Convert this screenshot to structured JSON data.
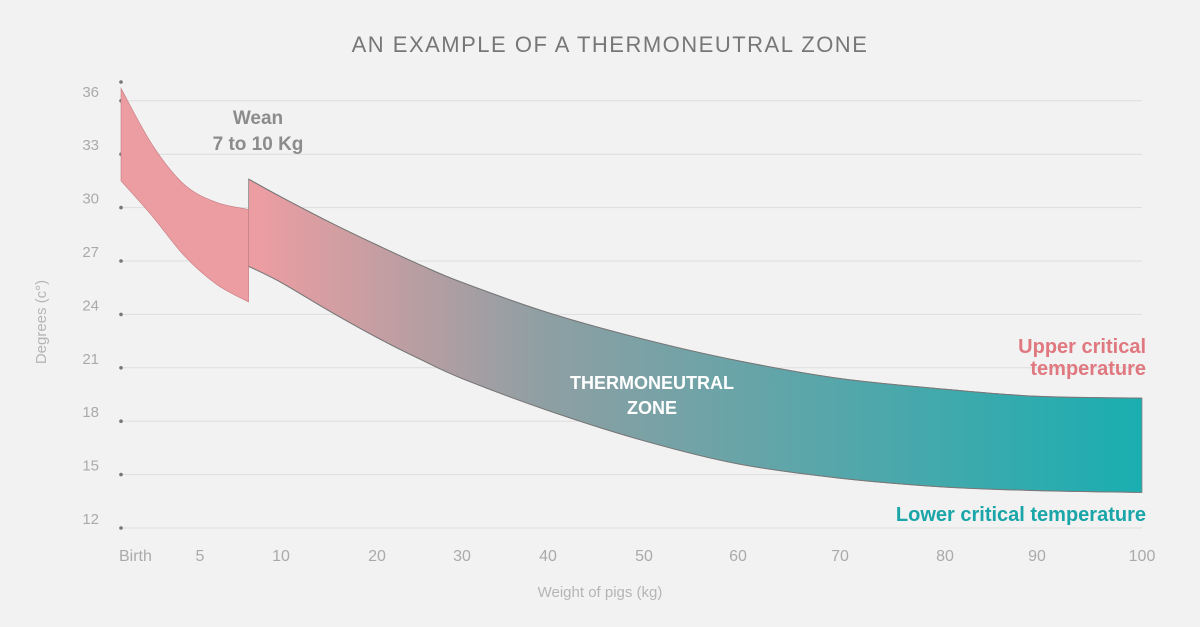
{
  "chart_data": {
    "type": "area",
    "title": "AN EXAMPLE OF A THERMONEUTRAL ZONE",
    "xlabel": "Weight of pigs (kg)",
    "ylabel": "Degrees (c°)",
    "x_ticks": [
      {
        "label": "Birth",
        "value": 0
      },
      {
        "label": "5",
        "value": 5
      },
      {
        "label": "10",
        "value": 10
      },
      {
        "label": "20",
        "value": 20
      },
      {
        "label": "30",
        "value": 30
      },
      {
        "label": "40",
        "value": 40
      },
      {
        "label": "50",
        "value": 50
      },
      {
        "label": "60",
        "value": 60
      },
      {
        "label": "70",
        "value": 70
      },
      {
        "label": "80",
        "value": 80
      },
      {
        "label": "90",
        "value": 90
      },
      {
        "label": "100",
        "value": 100
      }
    ],
    "y_ticks": [
      12,
      15,
      18,
      21,
      24,
      27,
      30,
      33,
      36
    ],
    "ylim": [
      12,
      37
    ],
    "grid": true,
    "series": [
      {
        "name": "Upper critical temperature",
        "color": "#e07880",
        "points": [
          [
            0,
            36.7
          ],
          [
            2,
            33.5
          ],
          [
            4,
            31.3
          ],
          [
            6,
            30.3
          ],
          [
            8,
            29.9
          ],
          [
            8,
            31.6
          ],
          [
            10,
            30.6
          ],
          [
            15,
            29.2
          ],
          [
            20,
            27.9
          ],
          [
            25,
            26.8
          ],
          [
            30,
            25.8
          ],
          [
            40,
            24.1
          ],
          [
            50,
            22.6
          ],
          [
            60,
            21.4
          ],
          [
            70,
            20.4
          ],
          [
            80,
            19.8
          ],
          [
            90,
            19.4
          ],
          [
            100,
            19.3
          ]
        ]
      },
      {
        "name": "Lower critical temperature",
        "color": "#1aa5a8",
        "points": [
          [
            0,
            31.5
          ],
          [
            2,
            29.5
          ],
          [
            4,
            27.3
          ],
          [
            6,
            25.7
          ],
          [
            8,
            24.7
          ],
          [
            8,
            26.7
          ],
          [
            10,
            25.8
          ],
          [
            15,
            24.2
          ],
          [
            20,
            22.7
          ],
          [
            25,
            21.5
          ],
          [
            30,
            20.4
          ],
          [
            40,
            18.6
          ],
          [
            50,
            16.9
          ],
          [
            60,
            15.6
          ],
          [
            70,
            14.8
          ],
          [
            80,
            14.3
          ],
          [
            90,
            14.1
          ],
          [
            100,
            14.0
          ]
        ]
      }
    ],
    "annotations": {
      "wean_line1": "Wean",
      "wean_line2": "7 to 10 Kg",
      "zone_line1": "THERMONEUTRAL",
      "zone_line2": "ZONE",
      "upper_line1": "Upper critical",
      "upper_line2": "temperature",
      "lower": "Lower critical temperature"
    },
    "colors": {
      "pre_wean": "#ec9da2",
      "mid": "#8f9fa3",
      "end": "#1aaeb1",
      "title": "#777777",
      "axis_text": "#aaaaaa",
      "grid": "#dddddd"
    }
  }
}
